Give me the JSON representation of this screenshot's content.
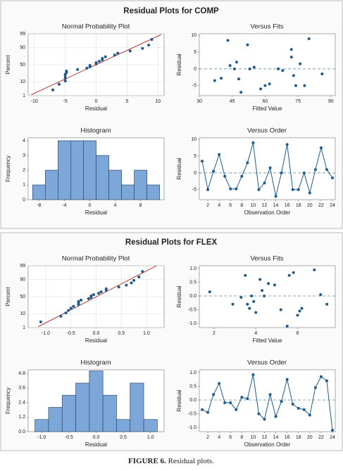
{
  "panels": [
    {
      "title": "Residual Plots for COMP"
    },
    {
      "title": "Residual Plots for FLEX"
    }
  ],
  "caption": {
    "label": "FIGURE 6.",
    "text": "Residual plots."
  },
  "chart_data": [
    {
      "type": "probability",
      "title": "Normal Probability Plot",
      "xlabel": "Residual",
      "ylabel": "Percent",
      "x": [
        -7,
        -6,
        -5,
        -5,
        -5,
        -5,
        -4.8,
        -4.8,
        -3,
        -1.5,
        -1,
        -1,
        0,
        0,
        0.5,
        1,
        1,
        1.5,
        3,
        3.5,
        5.5,
        7.5,
        8.5,
        9
      ],
      "values": [
        2.9,
        7.0,
        11.1,
        15.2,
        19.3,
        23.4,
        27.5,
        31.6,
        35.7,
        39.8,
        43.9,
        48.0,
        52.0,
        56.1,
        60.2,
        64.3,
        68.4,
        72.5,
        76.6,
        80.7,
        84.8,
        88.9,
        93.0,
        97.1
      ],
      "color": "#1f5a8a",
      "xlim": [
        -11,
        11
      ],
      "ylim": [
        1,
        99
      ],
      "xticks": [
        -10,
        -5,
        0,
        5,
        10
      ],
      "yticks": [
        1,
        10,
        50,
        90,
        99
      ],
      "yscale": "probability",
      "grid": true,
      "reference_line": {
        "x": [
          -10.5,
          10.5
        ],
        "y": [
          1.2,
          98.8
        ],
        "color": "#b22222"
      }
    },
    {
      "type": "scatter",
      "title": "Versus Fits",
      "xlabel": "Fitted Value",
      "ylabel": "Residual",
      "x": [
        37,
        40,
        43,
        44,
        46,
        47,
        48,
        49,
        52,
        53,
        55,
        58,
        60,
        62,
        66,
        68,
        72,
        72,
        73,
        74,
        76,
        78,
        80,
        86
      ],
      "values": [
        -3.5,
        -2.8,
        8.5,
        1,
        0,
        2,
        -3,
        -7,
        7.2,
        0,
        0.5,
        -6,
        -5,
        -4.5,
        0,
        -0.5,
        5.8,
        3.5,
        -2,
        -5,
        1.5,
        -5,
        9,
        -1.5
      ],
      "color": "#1f5a8a",
      "xlim": [
        30,
        92
      ],
      "ylim": [
        -8,
        10.5
      ],
      "xticks": [
        30,
        45,
        60,
        75,
        90
      ],
      "yticks": [
        -5,
        0,
        5,
        10
      ],
      "reference_line": {
        "y": 0,
        "color": "#5f8fa0"
      }
    },
    {
      "type": "histogram",
      "title": "Histogram",
      "xlabel": "Residual",
      "ylabel": "Frequency",
      "bins": [
        -9,
        -7,
        -5,
        -3,
        -1,
        1,
        3,
        5,
        7,
        9,
        11
      ],
      "values": [
        1,
        2,
        4,
        4,
        4,
        3,
        2,
        1,
        2,
        1
      ],
      "color": "#7da7d9",
      "xlim": [
        -9.7,
        11.7
      ],
      "ylim": [
        0,
        4.2
      ],
      "xticks": [
        -8,
        -4,
        0,
        4,
        8
      ],
      "yticks": [
        0,
        1,
        2,
        3,
        4
      ]
    },
    {
      "type": "line",
      "title": "Versus Order",
      "xlabel": "Observation Order",
      "ylabel": "Residual",
      "x": [
        1,
        2,
        3,
        4,
        5,
        6,
        7,
        8,
        9,
        10,
        11,
        12,
        13,
        14,
        15,
        16,
        17,
        18,
        19,
        20,
        21,
        22,
        23,
        24
      ],
      "values": [
        3.5,
        -5,
        0.5,
        5.5,
        -1,
        -4.8,
        -4.8,
        -1,
        3,
        9,
        -5,
        -3,
        1.5,
        -7,
        0,
        8.5,
        -5,
        -5,
        0,
        -6,
        1,
        7.5,
        1,
        -1.5
      ],
      "color": "#1f5a8a",
      "xlim": [
        0.5,
        24.5
      ],
      "ylim": [
        -8,
        10.5
      ],
      "xticks": [
        2,
        4,
        6,
        8,
        10,
        12,
        14,
        16,
        18,
        20,
        22,
        24
      ],
      "yticks": [
        -5,
        0,
        5,
        10
      ],
      "reference_line": {
        "y": 0,
        "color": "#5f8fa0"
      }
    },
    {
      "type": "probability",
      "title": "Normal Probability Plot",
      "xlabel": "Residual",
      "ylabel": "Percent",
      "x": [
        -1.1,
        -0.7,
        -0.6,
        -0.55,
        -0.5,
        -0.45,
        -0.35,
        -0.35,
        -0.35,
        -0.3,
        -0.15,
        -0.1,
        -0.1,
        -0.05,
        0.05,
        0.1,
        0.2,
        0.2,
        0.45,
        0.6,
        0.7,
        0.75,
        0.85,
        0.92
      ],
      "values": [
        2.9,
        7.0,
        11.1,
        15.2,
        19.3,
        23.4,
        27.5,
        31.6,
        35.7,
        39.8,
        43.9,
        48.0,
        52.0,
        56.1,
        60.2,
        64.3,
        68.4,
        72.5,
        76.6,
        80.7,
        84.8,
        88.9,
        93.0,
        97.1
      ],
      "color": "#1f5a8a",
      "xlim": [
        -1.35,
        1.35
      ],
      "ylim": [
        1,
        99
      ],
      "xticks": [
        {
          "value": -1,
          "label": "-1.0"
        },
        -0.5,
        {
          "value": 0,
          "label": "0.0"
        },
        0.5,
        {
          "value": 1,
          "label": "1.0"
        }
      ],
      "yticks": [
        1,
        10,
        50,
        90,
        99
      ],
      "yscale": "probability",
      "grid": true,
      "reference_line": {
        "x": [
          -1.15,
          1.2
        ],
        "y": [
          1.2,
          99
        ],
        "color": "#b22222"
      }
    },
    {
      "type": "scatter",
      "title": "Versus Fits",
      "xlabel": "Fitted Value",
      "ylabel": "Residual",
      "x": [
        1.8,
        2.9,
        3.3,
        3.5,
        3.6,
        3.7,
        3.8,
        3.9,
        4.0,
        4.2,
        4.3,
        4.4,
        4.6,
        4.9,
        5.2,
        5.5,
        5.6,
        5.8,
        6.0,
        6.1,
        6.2,
        6.8,
        7.1,
        7.4
      ],
      "values": [
        0.15,
        -0.3,
        -0.05,
        0.75,
        -0.3,
        -0.45,
        0.0,
        -0.2,
        -0.6,
        0.6,
        0.2,
        0.0,
        0.45,
        0.4,
        -0.5,
        -1.1,
        0.75,
        0.85,
        -0.7,
        -0.55,
        -0.45,
        0.95,
        0.05,
        -0.3
      ],
      "color": "#1f5a8a",
      "xlim": [
        1.3,
        7.8
      ],
      "ylim": [
        -1.15,
        1.1
      ],
      "xticks": [
        2,
        4,
        6
      ],
      "yticks": [
        {
          "value": -1,
          "label": "-1.0"
        },
        -0.5,
        {
          "value": 0,
          "label": "0.0"
        },
        0.5,
        {
          "value": 1,
          "label": "1.0"
        }
      ],
      "reference_line": {
        "y": 0,
        "color": "#5f8fa0"
      }
    },
    {
      "type": "histogram",
      "title": "Histogram",
      "xlabel": "Residual",
      "ylabel": "Frequency",
      "bins": [
        -1.125,
        -0.875,
        -0.625,
        -0.375,
        -0.125,
        0.125,
        0.375,
        0.625,
        0.875,
        1.125
      ],
      "values": [
        1,
        2,
        3,
        4,
        5,
        3,
        1,
        4,
        1
      ],
      "color": "#7da7d9",
      "xlim": [
        -1.25,
        1.25
      ],
      "ylim": [
        0,
        5.1
      ],
      "xticks": [
        {
          "value": -1,
          "label": "-1.0"
        },
        -0.5,
        {
          "value": 0,
          "label": "0.0"
        },
        0.5,
        {
          "value": 1,
          "label": "1.0"
        }
      ],
      "yticks": [
        {
          "value": 0,
          "label": "0.0"
        },
        1.2,
        2.4,
        3.6,
        4.8
      ]
    },
    {
      "type": "line",
      "title": "Versus Order",
      "xlabel": "Observation Order",
      "ylabel": "Residual",
      "x": [
        1,
        2,
        3,
        4,
        5,
        6,
        7,
        8,
        9,
        10,
        11,
        12,
        13,
        14,
        15,
        16,
        17,
        18,
        19,
        20,
        21,
        22,
        23,
        24
      ],
      "values": [
        -0.35,
        -0.45,
        0.2,
        0.6,
        -0.1,
        -0.1,
        -0.35,
        0.1,
        0.05,
        0.92,
        -0.5,
        -0.7,
        0.2,
        -0.6,
        -0.05,
        0.75,
        -0.15,
        -0.3,
        -0.35,
        -0.55,
        0.45,
        0.85,
        0.7,
        -1.1
      ],
      "color": "#1f5a8a",
      "xlim": [
        0.5,
        24.5
      ],
      "ylim": [
        -1.15,
        1.1
      ],
      "xticks": [
        2,
        4,
        6,
        8,
        10,
        12,
        14,
        16,
        18,
        20,
        22,
        24
      ],
      "yticks": [
        {
          "value": -1,
          "label": "-1.0"
        },
        -0.5,
        {
          "value": 0,
          "label": "0.0"
        },
        0.5,
        {
          "value": 1,
          "label": "1.0"
        }
      ],
      "reference_line": {
        "y": 0,
        "color": "#5f8fa0"
      }
    }
  ]
}
